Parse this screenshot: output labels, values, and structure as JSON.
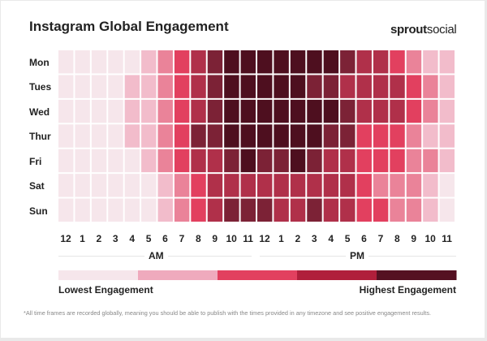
{
  "chart_data": {
    "type": "heatmap",
    "title": "Instagram Global Engagement",
    "rows": [
      "Mon",
      "Tues",
      "Wed",
      "Thur",
      "Fri",
      "Sat",
      "Sun"
    ],
    "columns": [
      "12",
      "1",
      "2",
      "3",
      "4",
      "5",
      "6",
      "7",
      "8",
      "9",
      "10",
      "11",
      "12",
      "1",
      "2",
      "3",
      "4",
      "5",
      "6",
      "7",
      "8",
      "9",
      "10",
      "11"
    ],
    "period_labels": [
      "AM",
      "PM"
    ],
    "scale_colors": [
      "#f6e6eb",
      "#f2bccb",
      "#ea8399",
      "#e2405f",
      "#b0304a",
      "#7c2236",
      "#4e0f1f"
    ],
    "legend_colors": [
      "#f6e6eb",
      "#efaabd",
      "#e2405f",
      "#b01f3b",
      "#551122"
    ],
    "legend_low": "Lowest Engagement",
    "legend_high": "Highest Engagement",
    "values": [
      [
        0,
        0,
        0,
        0,
        0,
        1,
        2,
        3,
        4,
        5,
        6,
        6,
        6,
        6,
        6,
        6,
        6,
        5,
        4,
        4,
        3,
        2,
        1,
        1
      ],
      [
        0,
        0,
        0,
        0,
        1,
        1,
        2,
        3,
        4,
        5,
        6,
        6,
        6,
        6,
        6,
        5,
        5,
        4,
        4,
        4,
        4,
        3,
        2,
        1
      ],
      [
        0,
        0,
        0,
        0,
        1,
        1,
        2,
        3,
        4,
        5,
        6,
        6,
        6,
        6,
        6,
        6,
        6,
        5,
        4,
        4,
        4,
        3,
        2,
        1
      ],
      [
        0,
        0,
        0,
        0,
        1,
        1,
        2,
        3,
        5,
        5,
        6,
        6,
        6,
        6,
        6,
        6,
        5,
        5,
        3,
        3,
        3,
        2,
        1,
        1
      ],
      [
        0,
        0,
        0,
        0,
        0,
        1,
        2,
        3,
        4,
        4,
        5,
        6,
        5,
        5,
        6,
        5,
        4,
        4,
        3,
        3,
        3,
        2,
        2,
        1
      ],
      [
        0,
        0,
        0,
        0,
        0,
        0,
        1,
        2,
        3,
        4,
        4,
        4,
        4,
        4,
        4,
        4,
        4,
        4,
        3,
        2,
        2,
        2,
        1,
        0
      ],
      [
        0,
        0,
        0,
        0,
        0,
        0,
        1,
        2,
        3,
        4,
        5,
        5,
        5,
        4,
        4,
        5,
        4,
        4,
        3,
        3,
        2,
        2,
        1,
        0
      ]
    ]
  },
  "logo": {
    "bold": "sprout",
    "light": "social"
  },
  "footnote": "*All time frames are recorded globally, meaning you should be able to publish with the times provided in any timezone and see positive engagement results."
}
